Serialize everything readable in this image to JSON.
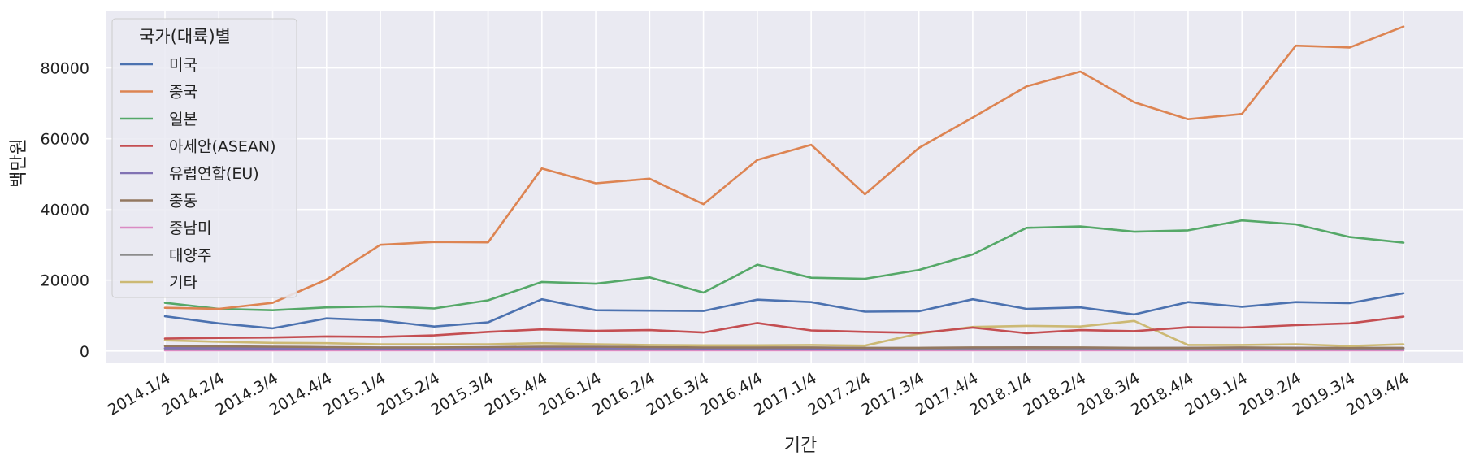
{
  "chart_data": {
    "type": "line",
    "xlabel": "기간",
    "ylabel": "백만원",
    "ylim": [
      -3500,
      96000
    ],
    "yticks": [
      0,
      20000,
      40000,
      60000,
      80000
    ],
    "grid": true,
    "legend": {
      "title": "국가(대륙)별",
      "placement": "top-left"
    },
    "categories": [
      "2014.1/4",
      "2014.2/4",
      "2014.3/4",
      "2014.4/4",
      "2015.1/4",
      "2015.2/4",
      "2015.3/4",
      "2015.4/4",
      "2016.1/4",
      "2016.2/4",
      "2016.3/4",
      "2016.4/4",
      "2017.1/4",
      "2017.2/4",
      "2017.3/4",
      "2017.4/4",
      "2018.1/4",
      "2018.2/4",
      "2018.3/4",
      "2018.4/4",
      "2019.1/4",
      "2019.2/4",
      "2019.3/4",
      "2019.4/4"
    ],
    "series": [
      {
        "name": "미국",
        "color": "#4c72b0",
        "values": [
          9800,
          7800,
          6400,
          9200,
          8600,
          6900,
          8100,
          14600,
          11500,
          11400,
          11300,
          14500,
          13800,
          11100,
          11200,
          14600,
          11900,
          12300,
          10300,
          13800,
          12500,
          13800,
          13500,
          16300
        ]
      },
      {
        "name": "중국",
        "color": "#dd8452",
        "values": [
          12200,
          11900,
          13600,
          20200,
          30000,
          30800,
          30700,
          51600,
          47400,
          48700,
          41500,
          54000,
          58300,
          44300,
          57400,
          66000,
          74800,
          79000,
          70300,
          65500,
          67000,
          86300,
          85800,
          91700
        ]
      },
      {
        "name": "일본",
        "color": "#55a868",
        "values": [
          13600,
          11900,
          11500,
          12300,
          12600,
          12000,
          14300,
          19500,
          19000,
          20800,
          16500,
          24400,
          20700,
          20400,
          22900,
          27300,
          34800,
          35200,
          33700,
          34100,
          36900,
          35800,
          32200,
          30600
        ]
      },
      {
        "name": "아세안(ASEAN)",
        "color": "#c44e52",
        "values": [
          3500,
          3700,
          3800,
          4100,
          4000,
          4400,
          5400,
          6100,
          5700,
          5900,
          5200,
          7900,
          5800,
          5400,
          5100,
          6600,
          5000,
          5900,
          5600,
          6700,
          6600,
          7300,
          7800,
          9700
        ]
      },
      {
        "name": "유럽연합(EU)",
        "color": "#8172b3",
        "values": [
          800,
          800,
          700,
          700,
          600,
          600,
          700,
          800,
          800,
          800,
          700,
          800,
          700,
          700,
          800,
          900,
          1000,
          900,
          800,
          900,
          900,
          900,
          800,
          800
        ]
      },
      {
        "name": "중동",
        "color": "#937860",
        "values": [
          1400,
          1300,
          1200,
          1100,
          1000,
          1000,
          1100,
          1200,
          1200,
          1100,
          1000,
          1000,
          1000,
          900,
          900,
          1000,
          1000,
          1000,
          900,
          900,
          1000,
          900,
          900,
          900
        ]
      },
      {
        "name": "중남미",
        "color": "#da8bc3",
        "values": [
          200,
          200,
          200,
          200,
          200,
          200,
          200,
          200,
          200,
          200,
          200,
          200,
          200,
          200,
          200,
          200,
          200,
          200,
          200,
          200,
          200,
          200,
          200,
          200
        ]
      },
      {
        "name": "대양주",
        "color": "#8c8c8c",
        "values": [
          700,
          700,
          700,
          700,
          700,
          700,
          700,
          700,
          700,
          700,
          700,
          700,
          700,
          700,
          700,
          700,
          700,
          700,
          700,
          700,
          700,
          700,
          700,
          700
        ]
      },
      {
        "name": "기타",
        "color": "#ccb974",
        "values": [
          3000,
          2600,
          2300,
          2200,
          1900,
          1900,
          1900,
          2200,
          1900,
          1700,
          1600,
          1600,
          1700,
          1500,
          4900,
          6800,
          7100,
          6900,
          8500,
          1700,
          1700,
          1900,
          1400,
          1900
        ]
      }
    ]
  }
}
